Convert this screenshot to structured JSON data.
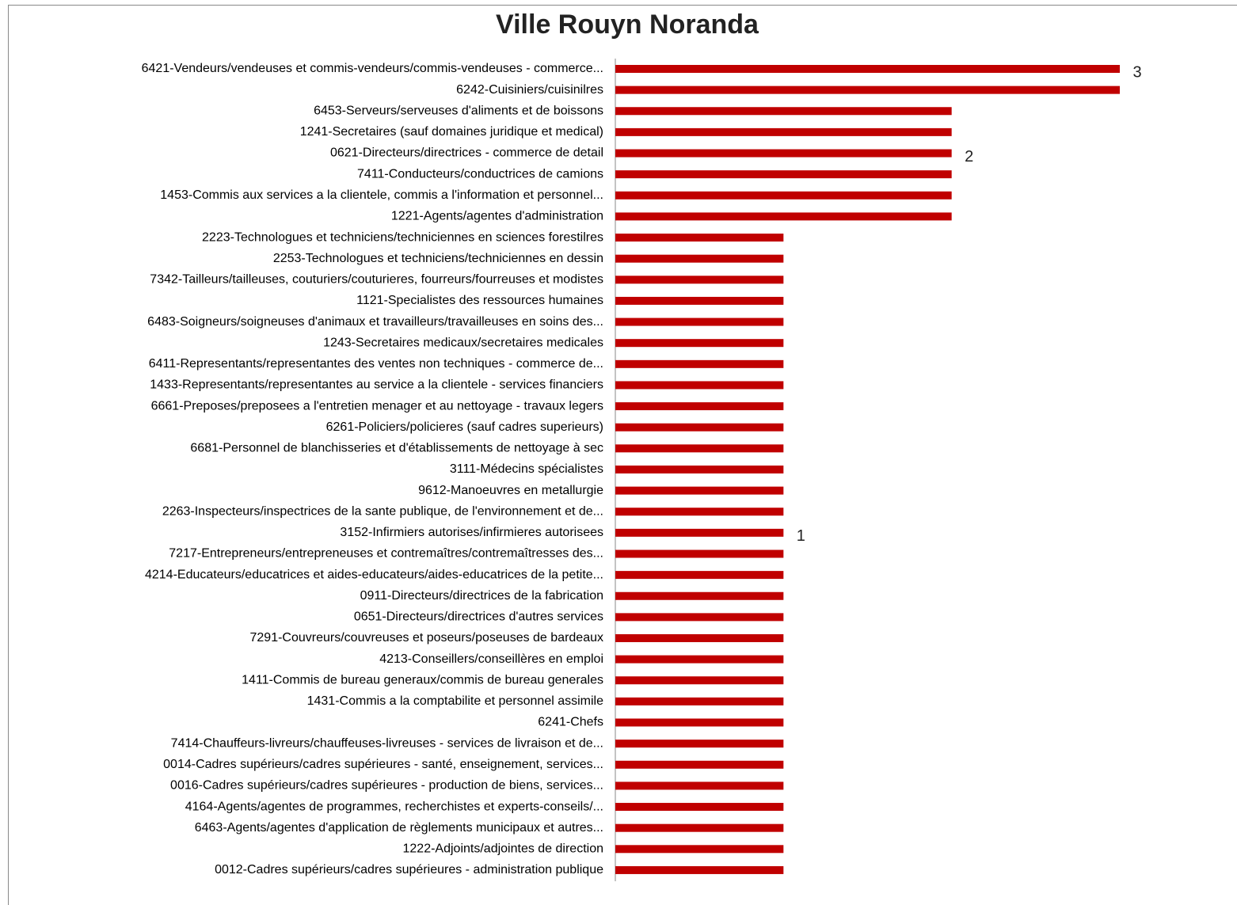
{
  "chart_data": {
    "type": "barh",
    "title": "Ville Rouyn Noranda",
    "color": "#c00000",
    "xlim": [
      0,
      3
    ],
    "categories": [
      "6421-Vendeurs/vendeuses et commis-vendeurs/commis-vendeuses - commerce...",
      "6242-Cuisiniers/cuisinilres",
      "6453-Serveurs/serveuses d'aliments et de boissons",
      "1241-Secretaires (sauf domaines juridique et medical)",
      "0621-Directeurs/directrices - commerce de detail",
      "7411-Conducteurs/conductrices de camions",
      "1453-Commis aux services a la clientele, commis a l'information et personnel...",
      "1221-Agents/agentes d'administration",
      "2223-Technologues et techniciens/techniciennes en sciences forestilres",
      "2253-Technologues et techniciens/techniciennes en dessin",
      "7342-Tailleurs/tailleuses, couturiers/couturieres, fourreurs/fourreuses et modistes",
      "1121-Specialistes des ressources humaines",
      "6483-Soigneurs/soigneuses d'animaux et travailleurs/travailleuses en soins des...",
      "1243-Secretaires medicaux/secretaires medicales",
      "6411-Representants/representantes des ventes non techniques - commerce de...",
      "1433-Representants/representantes au service a la clientele - services financiers",
      "6661-Preposes/preposees a l'entretien menager et au nettoyage - travaux legers",
      "6261-Policiers/policieres (sauf cadres superieurs)",
      "6681-Personnel de blanchisseries et d'établissements de nettoyage à sec",
      "3111-Médecins spécialistes",
      "9612-Manoeuvres en metallurgie",
      "2263-Inspecteurs/inspectrices de la sante publique, de l'environnement et de...",
      "3152-Infirmiers autorises/infirmieres autorisees",
      "7217-Entrepreneurs/entrepreneuses et contremaîtres/contremaîtresses des...",
      "4214-Educateurs/educatrices et aides-educateurs/aides-educatrices de la petite...",
      "0911-Directeurs/directrices de la fabrication",
      "0651-Directeurs/directrices d'autres services",
      "7291-Couvreurs/couvreuses et poseurs/poseuses de bardeaux",
      "4213-Conseillers/conseillères en emploi",
      "1411-Commis de bureau generaux/commis de bureau generales",
      "1431-Commis a la comptabilite et personnel assimile",
      "6241-Chefs",
      "7414-Chauffeurs-livreurs/chauffeuses-livreuses - services de livraison et de...",
      "0014-Cadres supérieurs/cadres supérieures - santé, enseignement, services...",
      "0016-Cadres supérieurs/cadres supérieures - production de biens, services...",
      "4164-Agents/agentes de programmes, recherchistes et experts-conseils/...",
      "6463-Agents/agentes d'application de règlements municipaux et autres...",
      "1222-Adjoints/adjointes de direction",
      "0012-Cadres supérieurs/cadres supérieures - administration publique"
    ],
    "values": [
      3,
      3,
      2,
      2,
      2,
      2,
      2,
      2,
      1,
      1,
      1,
      1,
      1,
      1,
      1,
      1,
      1,
      1,
      1,
      1,
      1,
      1,
      1,
      1,
      1,
      1,
      1,
      1,
      1,
      1,
      1,
      1,
      1,
      1,
      1,
      1,
      1,
      1,
      1
    ],
    "value_labels": [
      "3",
      null,
      null,
      null,
      "2",
      null,
      null,
      null,
      null,
      null,
      null,
      null,
      null,
      null,
      null,
      null,
      null,
      null,
      null,
      null,
      null,
      null,
      "1",
      null,
      null,
      null,
      null,
      null,
      null,
      null,
      null,
      null,
      null,
      null,
      null,
      null,
      null,
      null,
      null
    ]
  }
}
